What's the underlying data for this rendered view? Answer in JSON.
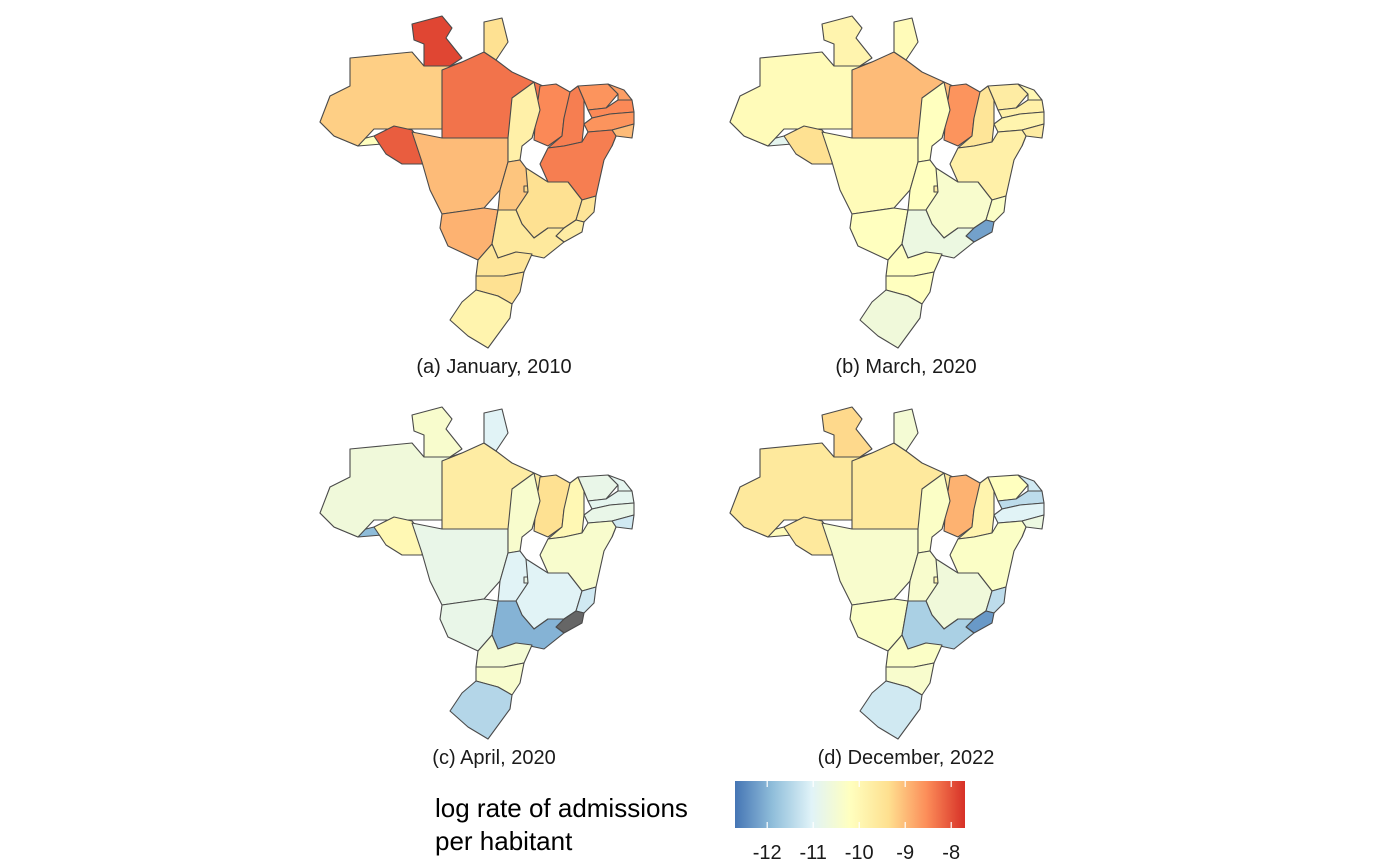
{
  "panels": [
    {
      "caption": "(a) January, 2010"
    },
    {
      "caption": "(b) March, 2020"
    },
    {
      "caption": "(c) April, 2020"
    },
    {
      "caption": "(d) December, 2022"
    }
  ],
  "legend": {
    "title_line1": "log rate of admissions",
    "title_line2": "per habitant",
    "ticks": [
      "-12",
      "-11",
      "-10",
      "-9",
      "-8"
    ],
    "range": [
      -12.7,
      -7.7
    ],
    "colors": [
      "#4575b4",
      "#91bfdb",
      "#e0f3f8",
      "#ffffbf",
      "#fee090",
      "#fc8d59",
      "#d73027"
    ]
  },
  "states": [
    "AC",
    "AM",
    "RR",
    "PA",
    "AP",
    "MA",
    "PI",
    "CE",
    "RN",
    "PB",
    "PE",
    "AL",
    "SE",
    "BA",
    "RO",
    "MT",
    "TO",
    "GO",
    "DF",
    "MS",
    "MG",
    "ES",
    "RJ",
    "SP",
    "PR",
    "SC",
    "RS"
  ],
  "values": {
    "jan2010": {
      "AC": -10.2,
      "AM": -9.2,
      "RR": -7.9,
      "PA": -8.3,
      "AP": -9.4,
      "MA": -8.5,
      "PI": -8.4,
      "CE": -8.6,
      "RN": -8.7,
      "PB": -8.5,
      "PE": -8.6,
      "AL": -9.0,
      "SE": -9.1,
      "BA": -8.4,
      "RO": -8.1,
      "MT": -9.0,
      "TO": -9.8,
      "GO": -9.1,
      "DF": -9.3,
      "MS": -8.9,
      "MG": -9.4,
      "ES": -9.5,
      "RJ": -9.7,
      "SP": -9.6,
      "PR": -9.5,
      "SC": -9.4,
      "RS": -9.9
    },
    "mar2020": {
      "AC": -10.9,
      "AM": -10.1,
      "RR": -9.9,
      "PA": -9.0,
      "AP": -10.1,
      "MA": -8.6,
      "PI": -9.5,
      "CE": -9.7,
      "RN": -10.0,
      "PB": -9.8,
      "PE": -9.9,
      "AL": -9.7,
      "SE": -9.8,
      "BA": -9.8,
      "RO": -9.4,
      "MT": -10.1,
      "TO": -10.2,
      "GO": -10.2,
      "DF": -9.7,
      "MS": -10.2,
      "MG": -10.4,
      "ES": -10.3,
      "RJ": -12.2,
      "SP": -10.7,
      "PR": -10.2,
      "SC": -10.2,
      "RS": -10.6
    },
    "apr2020": {
      "AC": -11.9,
      "AM": -10.6,
      "RR": -10.4,
      "PA": -9.7,
      "AP": -11.0,
      "MA": -9.4,
      "PI": -10.0,
      "CE": -10.8,
      "RN": -10.9,
      "PB": -10.9,
      "PE": -10.8,
      "AL": -11.2,
      "SE": -11.3,
      "BA": -10.4,
      "RO": -10.0,
      "MT": -10.8,
      "TO": -10.4,
      "GO": -11.0,
      "DF": -10.8,
      "MS": -10.8,
      "MG": -11.0,
      "ES": -11.2,
      "RJ": null,
      "SP": -12.0,
      "PR": -10.5,
      "SC": -10.4,
      "RS": -11.5
    },
    "dec2022": {
      "AC": -10.1,
      "AM": -9.6,
      "RR": -9.3,
      "PA": -9.6,
      "AP": -10.5,
      "MA": -8.9,
      "PI": -9.9,
      "CE": -10.2,
      "RN": -11.2,
      "PB": -11.4,
      "PE": -11.0,
      "AL": -10.7,
      "SE": -11.2,
      "BA": -10.3,
      "RO": -9.6,
      "MT": -10.4,
      "TO": -10.3,
      "GO": -10.4,
      "DF": -9.9,
      "MS": -10.3,
      "MG": -10.6,
      "ES": -11.4,
      "RJ": -12.3,
      "SP": -11.6,
      "PR": -10.3,
      "SC": -10.4,
      "RS": -11.2
    }
  },
  "missing_color": "#666666"
}
